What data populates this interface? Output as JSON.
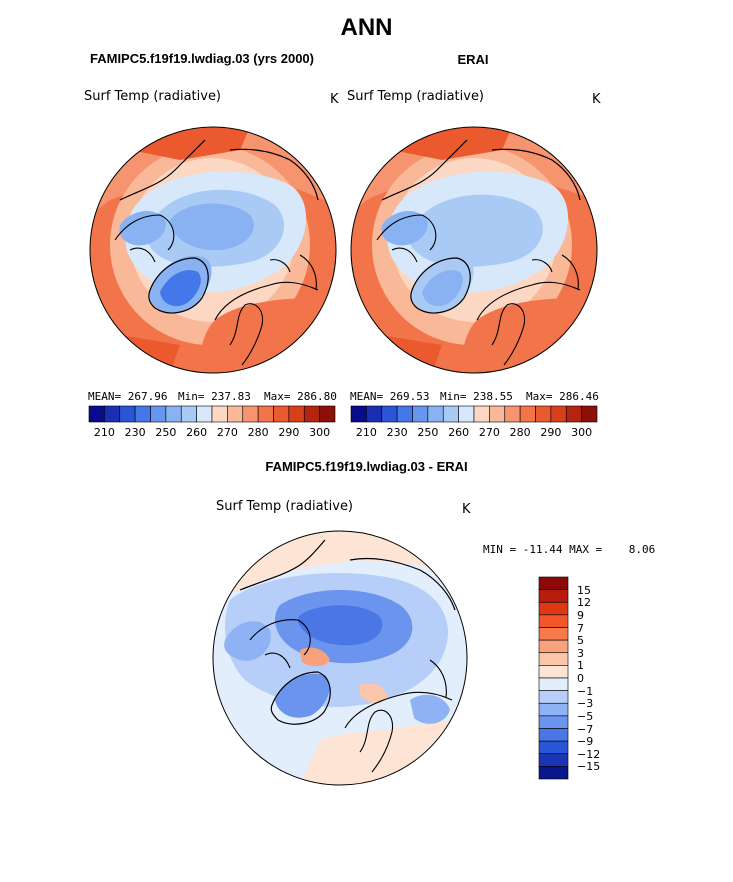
{
  "main_title": "ANN",
  "panel_left": {
    "title": "FAMIPC5.f19f19.lwdiag.03 (yrs 2000)",
    "variable": "Surf Temp (radiative)",
    "unit": "K",
    "mean_label": "MEAN= 267.96",
    "min_label": "Min= 237.83",
    "max_label": "Max= 286.80"
  },
  "panel_right": {
    "title": "ERAI",
    "variable": "Surf Temp (radiative)",
    "unit": "K",
    "mean_label": "MEAN= 269.53",
    "min_label": "Min= 238.55",
    "max_label": "Max= 286.46"
  },
  "colorbar_top": {
    "colors": [
      "#0a0a8c",
      "#1a2eb4",
      "#2a55d6",
      "#4477e8",
      "#6696ee",
      "#88b2f2",
      "#aacaf6",
      "#d8e8fb",
      "#fcd8c4",
      "#f9b898",
      "#f79470",
      "#f2744a",
      "#ea5a2e",
      "#d8401c",
      "#b42410",
      "#8c1008"
    ],
    "tick_labels": [
      "210",
      "230",
      "250",
      "260",
      "270",
      "280",
      "290",
      "300"
    ]
  },
  "panel_diff": {
    "title": "FAMIPC5.f19f19.lwdiag.03 - ERAI",
    "variable": "Surf Temp (radiative)",
    "unit": "K",
    "minmax_label": "MIN = -11.44 MAX =    8.06"
  },
  "colorbar_diff": {
    "colors": [
      "#8c0a08",
      "#b81c0c",
      "#dc3814",
      "#f2572a",
      "#f67a4c",
      "#f9a07c",
      "#fcc6aa",
      "#fde4d4",
      "#e2eefc",
      "#b6cef8",
      "#8eb2f4",
      "#6a94ee",
      "#4a76e6",
      "#2c56d8",
      "#1a36b4",
      "#0a168c"
    ],
    "tick_labels": [
      "15",
      "12",
      "9",
      "7",
      "5",
      "3",
      "1",
      "0",
      "−1",
      "−3",
      "−5",
      "−7",
      "−9",
      "−12",
      "−15"
    ]
  }
}
